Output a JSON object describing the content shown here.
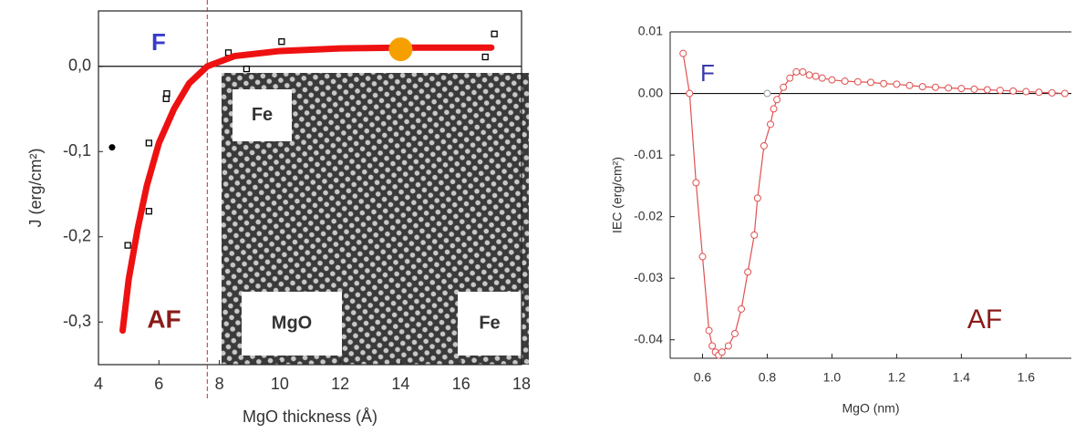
{
  "chart_data": [
    {
      "type": "scatter",
      "x_label": "MgO thickness (Å)",
      "y_label": "J (erg/cm²)",
      "xlim": [
        4,
        18
      ],
      "ylim": [
        -0.35,
        0.065
      ],
      "xticks": [
        4,
        6,
        8,
        10,
        12,
        14,
        16,
        18
      ],
      "yticks": [
        {
          "value": 0,
          "label": "0,0"
        },
        {
          "value": -0.1,
          "label": "-0,1"
        },
        {
          "value": -0.2,
          "label": "-0,2"
        },
        {
          "value": -0.3,
          "label": "-0,3"
        }
      ],
      "reference_line": 7.6,
      "annotations": [
        "F",
        "AF"
      ],
      "inset_labels": [
        "Fe",
        "MgO",
        "Fe"
      ],
      "series": [
        {
          "color": "#000000",
          "marker": "filled-dot",
          "x": [
            4.45
          ],
          "values": [
            -0.095
          ]
        },
        {
          "color": "#000000",
          "marker": "square",
          "x": [
            4.97,
            5.67,
            5.67,
            6.24,
            6.26,
            8.3,
            8.9,
            10.06,
            16.8,
            17.1
          ],
          "values": [
            -0.21,
            -0.17,
            -0.09,
            -0.038,
            -0.032,
            0.016,
            -0.003,
            0.029,
            0.011,
            0.038
          ]
        },
        {
          "color": "#ee1111",
          "marker": "none",
          "x": [
            4.8,
            5,
            5.3,
            5.6,
            6,
            6.5,
            7,
            7.6,
            8.5,
            10,
            12,
            14,
            17
          ],
          "values": [
            -0.31,
            -0.25,
            -0.19,
            -0.14,
            -0.09,
            -0.05,
            -0.02,
            0.0,
            0.012,
            0.018,
            0.021,
            0.022,
            0.022
          ]
        },
        {
          "color": "#f5a000",
          "marker": "big-dot",
          "x": [
            14
          ],
          "values": [
            0.02
          ]
        }
      ]
    },
    {
      "type": "line",
      "x_label": "MgO (nm)",
      "y_label": "IEC (erg/cm²)",
      "xlim": [
        0.5,
        1.74
      ],
      "ylim": [
        -0.043,
        0.01
      ],
      "xticks": [
        0.6,
        0.8,
        {
          "value": 1.0,
          "label": "1.0"
        },
        1.2,
        1.4,
        1.6
      ],
      "yticks": [
        0.01,
        {
          "value": 0,
          "label": "0.00"
        },
        -0.01,
        -0.02,
        -0.03,
        -0.04
      ],
      "annotations": [
        "F",
        "AF"
      ],
      "series": [
        {
          "color": "#e05050",
          "marker": "open-circle",
          "x": [
            0.54,
            0.56,
            0.58,
            0.6,
            0.62,
            0.63,
            0.64,
            0.65,
            0.66,
            0.68,
            0.7,
            0.72,
            0.74,
            0.76,
            0.77,
            0.79,
            0.81,
            0.82,
            0.83,
            0.85,
            0.87,
            0.89,
            0.91,
            0.93,
            0.95,
            0.97,
            1.0,
            1.04,
            1.08,
            1.12,
            1.16,
            1.2,
            1.24,
            1.28,
            1.32,
            1.36,
            1.4,
            1.44,
            1.48,
            1.52,
            1.56,
            1.6,
            1.64,
            1.68,
            1.72
          ],
          "values": [
            0.0065,
            0.0,
            -0.0145,
            -0.0265,
            -0.0385,
            -0.041,
            -0.042,
            -0.0425,
            -0.042,
            -0.041,
            -0.039,
            -0.035,
            -0.029,
            -0.023,
            -0.017,
            -0.0085,
            -0.005,
            -0.0025,
            -0.001,
            0.001,
            0.0025,
            0.0035,
            0.0035,
            0.003,
            0.0028,
            0.0025,
            0.0022,
            0.002,
            0.0019,
            0.0018,
            0.0016,
            0.0015,
            0.0013,
            0.0011,
            0.001,
            0.0009,
            0.0008,
            0.0007,
            0.0006,
            0.0005,
            0.0004,
            0.0003,
            0.0002,
            0.0001,
            0.0
          ]
        },
        {
          "color": "#999999",
          "marker": "open-circle",
          "x": [
            0.8
          ],
          "values": [
            0.0
          ]
        }
      ]
    }
  ]
}
